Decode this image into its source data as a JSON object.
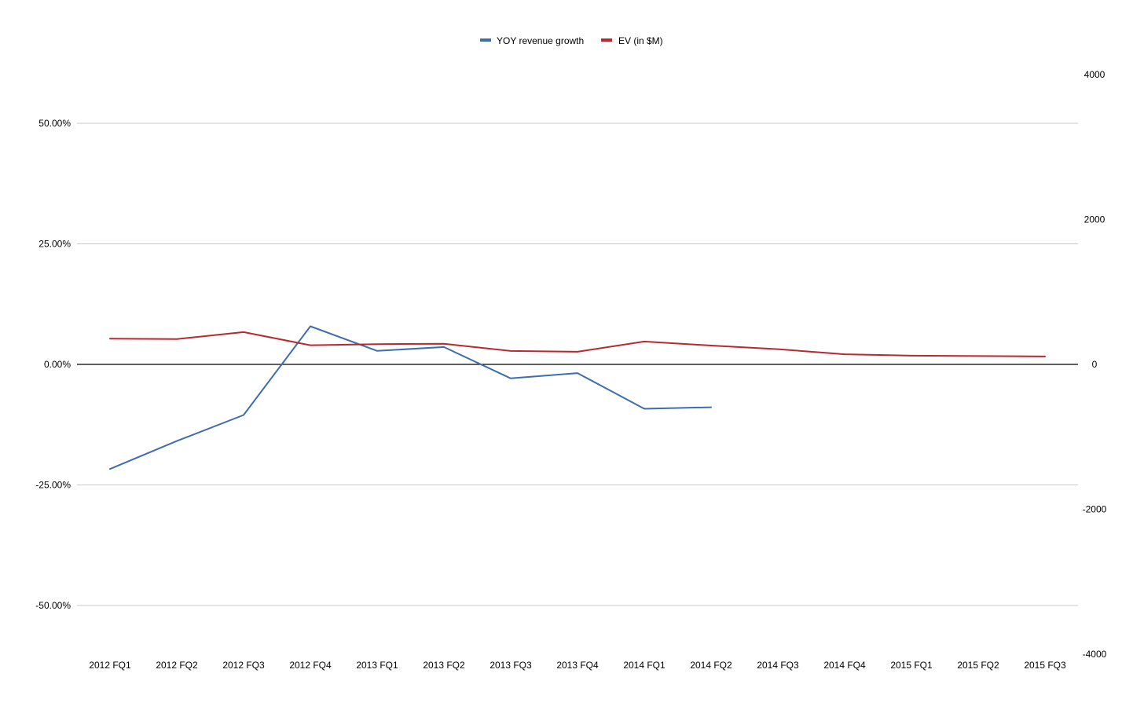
{
  "chart_data": {
    "type": "line",
    "legend_position": "top-center",
    "categories": [
      "2012 FQ1",
      "2012 FQ2",
      "2012 FQ3",
      "2012 FQ4",
      "2013 FQ1",
      "2013 FQ2",
      "2013 FQ3",
      "2013 FQ4",
      "2014 FQ1",
      "2014 FQ2",
      "2014 FQ3",
      "2014 FQ4",
      "2015 FQ1",
      "2015 FQ2",
      "2015 FQ3"
    ],
    "left_axis": {
      "ylim": [
        -60,
        60
      ],
      "ticks": [
        50,
        25,
        0,
        -25,
        -50
      ],
      "tick_labels": [
        "50.00%",
        "25.00%",
        "0.00%",
        "-25.00%",
        "-50.00%"
      ]
    },
    "right_axis": {
      "ylim": [
        -4000,
        4000
      ],
      "ticks": [
        4000,
        2000,
        0,
        -2000,
        -4000
      ],
      "tick_labels": [
        "4000",
        "2000",
        "0",
        "-2000",
        "-4000"
      ]
    },
    "grid": true,
    "series": [
      {
        "name": "YOY revenue growth",
        "axis": "left",
        "color": "#3d6db0",
        "values": [
          -21.7,
          -15.9,
          -10.5,
          7.9,
          2.8,
          3.6,
          -2.9,
          -1.8,
          -9.2,
          -8.9,
          null,
          null,
          null,
          null,
          null
        ]
      },
      {
        "name": "EV (in $M)",
        "axis": "right",
        "color": "#b8292f",
        "values": [
          355,
          350,
          445,
          265,
          280,
          285,
          185,
          175,
          315,
          260,
          210,
          140,
          120,
          115,
          110
        ]
      }
    ]
  }
}
